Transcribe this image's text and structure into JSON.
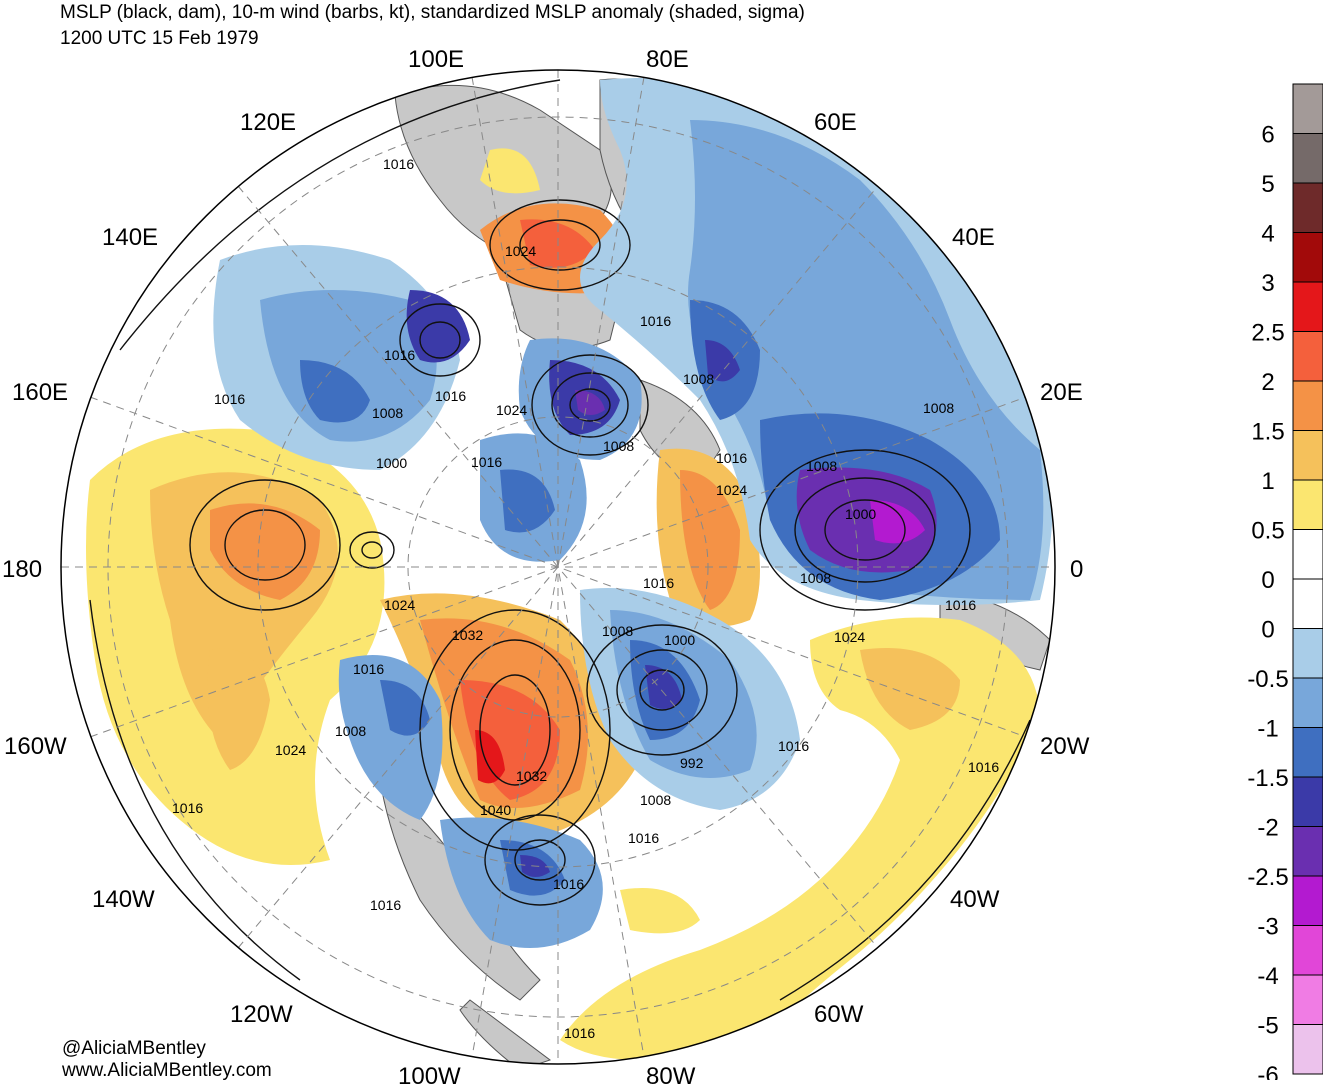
{
  "title": {
    "line1": "MSLP (black, dam), 10-m wind (barbs, kt), standardized MSLP anomaly (shaded, sigma)",
    "line2": "1200 UTC 15 Feb 1979"
  },
  "credits": {
    "twitter": "@AliciaMBentley",
    "website": "www.AliciaMBentley.com"
  },
  "longitude_labels": [
    "100E",
    "80E",
    "120E",
    "60E",
    "140E",
    "40E",
    "160E",
    "20E",
    "180",
    "0",
    "160W",
    "20W",
    "140W",
    "40W",
    "120W",
    "60W",
    "100W",
    "80W"
  ],
  "isobar_labels": [
    "1016",
    "1024",
    "1016",
    "1016",
    "1016",
    "1008",
    "1024",
    "1008",
    "1008",
    "1016",
    "1008",
    "1000",
    "1016",
    "1008",
    "1016",
    "1024",
    "1000",
    "1008",
    "1016",
    "1024",
    "1032",
    "1008",
    "1000",
    "1016",
    "1016",
    "1008",
    "1024",
    "1016",
    "1024",
    "992",
    "1032",
    "1040",
    "1008",
    "1016",
    "1016",
    "1016",
    "1016",
    "1016",
    "1016"
  ],
  "colorbar": {
    "labels": [
      "6",
      "5",
      "4",
      "3",
      "2.5",
      "2",
      "1.5",
      "1",
      "0.5",
      "0",
      "0",
      "-0.5",
      "-1",
      "-1.5",
      "-2",
      "-2.5",
      "-3",
      "-4",
      "-5",
      "-6"
    ],
    "colors": [
      "#a39a98",
      "#756a69",
      "#6e2a2a",
      "#a20a0a",
      "#e4171a",
      "#f4603c",
      "#f49246",
      "#f5c15b",
      "#fbe670",
      "#ffffff",
      "#ffffff",
      "#a9cde8",
      "#78a7da",
      "#3f6fc0",
      "#3b3aa8",
      "#6a2fb0",
      "#b31ad0",
      "#e146d8",
      "#f07ce4",
      "#ecc2ec"
    ]
  },
  "map_colors": {
    "land_gray": "#c8c8c8",
    "outside": "#ffffff"
  }
}
